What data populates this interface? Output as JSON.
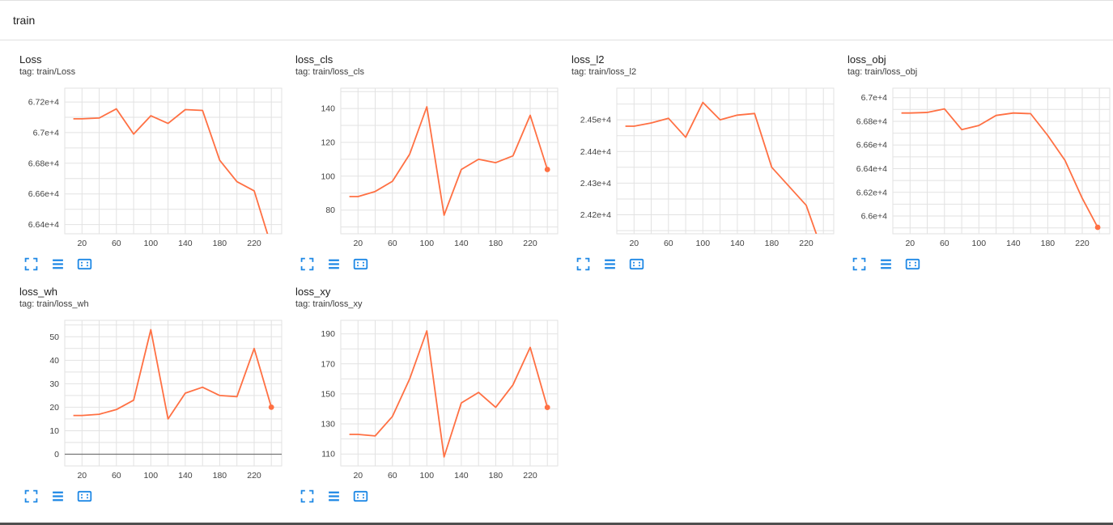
{
  "header": {
    "title": "train"
  },
  "colors": {
    "line": "#ff7043",
    "grid": "#e2e2e2",
    "axis_text": "#424242",
    "icon": "#1e88e5",
    "zero_line": "#757575"
  },
  "chart_data": [
    {
      "type": "line",
      "title": "Loss",
      "tag": "tag: train/Loss",
      "x": [
        10,
        20,
        40,
        60,
        80,
        100,
        120,
        140,
        160,
        180,
        200,
        220,
        236
      ],
      "y": [
        67090,
        67090,
        67095,
        67155,
        66990,
        67110,
        67060,
        67150,
        67145,
        66820,
        66680,
        66620,
        66330
      ],
      "xlim": [
        0,
        252
      ],
      "ylim": [
        66340,
        67290
      ],
      "xticks": [
        20,
        60,
        100,
        140,
        180,
        220
      ],
      "x_grid_step": 20,
      "yticks": [
        {
          "v": 66400,
          "label": "6.64e+4"
        },
        {
          "v": 66600,
          "label": "6.66e+4"
        },
        {
          "v": 66800,
          "label": "6.68e+4"
        },
        {
          "v": 67000,
          "label": "6.7e+4"
        },
        {
          "v": 67200,
          "label": "6.72e+4"
        }
      ],
      "y_minor_step": 100,
      "end_marker": false,
      "zero_line": false
    },
    {
      "type": "line",
      "title": "loss_cls",
      "tag": "tag: train/loss_cls",
      "x": [
        10,
        20,
        40,
        60,
        80,
        100,
        120,
        140,
        160,
        180,
        200,
        220,
        240
      ],
      "y": [
        88,
        88,
        91,
        97,
        113,
        141,
        77,
        104,
        110,
        108,
        112,
        136,
        104
      ],
      "xlim": [
        0,
        252
      ],
      "ylim": [
        66,
        152
      ],
      "xticks": [
        20,
        60,
        100,
        140,
        180,
        220
      ],
      "x_grid_step": 20,
      "yticks": [
        {
          "v": 80,
          "label": "80"
        },
        {
          "v": 100,
          "label": "100"
        },
        {
          "v": 120,
          "label": "120"
        },
        {
          "v": 140,
          "label": "140"
        }
      ],
      "y_minor_step": 10,
      "end_marker": true,
      "zero_line": false
    },
    {
      "type": "line",
      "title": "loss_l2",
      "tag": "tag: train/loss_l2",
      "x": [
        10,
        20,
        40,
        60,
        80,
        100,
        120,
        140,
        160,
        180,
        200,
        220,
        233
      ],
      "y": [
        24480,
        24480,
        24490,
        24505,
        24445,
        24555,
        24500,
        24515,
        24520,
        24350,
        24290,
        24230,
        24130
      ],
      "xlim": [
        0,
        252
      ],
      "ylim": [
        24140,
        24600
      ],
      "xticks": [
        20,
        60,
        100,
        140,
        180,
        220
      ],
      "x_grid_step": 20,
      "yticks": [
        {
          "v": 24200,
          "label": "2.42e+4"
        },
        {
          "v": 24300,
          "label": "2.43e+4"
        },
        {
          "v": 24400,
          "label": "2.44e+4"
        },
        {
          "v": 24500,
          "label": "2.45e+4"
        }
      ],
      "y_minor_step": 50,
      "end_marker": false,
      "zero_line": false
    },
    {
      "type": "line",
      "title": "loss_obj",
      "tag": "tag: train/loss_obj",
      "x": [
        10,
        20,
        40,
        60,
        80,
        100,
        120,
        140,
        160,
        180,
        200,
        220,
        238
      ],
      "y": [
        66870,
        66870,
        66875,
        66905,
        66730,
        66765,
        66850,
        66870,
        66865,
        66680,
        66470,
        66150,
        65905
      ],
      "xlim": [
        0,
        252
      ],
      "ylim": [
        65850,
        67080
      ],
      "xticks": [
        20,
        60,
        100,
        140,
        180,
        220
      ],
      "x_grid_step": 20,
      "yticks": [
        {
          "v": 66000,
          "label": "6.6e+4"
        },
        {
          "v": 66200,
          "label": "6.62e+4"
        },
        {
          "v": 66400,
          "label": "6.64e+4"
        },
        {
          "v": 66600,
          "label": "6.66e+4"
        },
        {
          "v": 66800,
          "label": "6.68e+4"
        },
        {
          "v": 67000,
          "label": "6.7e+4"
        }
      ],
      "y_minor_step": 100,
      "end_marker": true,
      "zero_line": false
    },
    {
      "type": "line",
      "title": "loss_wh",
      "tag": "tag: train/loss_wh",
      "x": [
        10,
        20,
        40,
        60,
        80,
        100,
        120,
        140,
        160,
        180,
        200,
        220,
        240
      ],
      "y": [
        16.5,
        16.5,
        17,
        19,
        23,
        53,
        15,
        26,
        28.5,
        25,
        24.5,
        45,
        20
      ],
      "xlim": [
        0,
        252
      ],
      "ylim": [
        -5,
        57
      ],
      "xticks": [
        20,
        60,
        100,
        140,
        180,
        220
      ],
      "x_grid_step": 20,
      "yticks": [
        {
          "v": 0,
          "label": "0"
        },
        {
          "v": 10,
          "label": "10"
        },
        {
          "v": 20,
          "label": "20"
        },
        {
          "v": 30,
          "label": "30"
        },
        {
          "v": 40,
          "label": "40"
        },
        {
          "v": 50,
          "label": "50"
        }
      ],
      "y_minor_step": 5,
      "end_marker": true,
      "zero_line": true
    },
    {
      "type": "line",
      "title": "loss_xy",
      "tag": "tag: train/loss_xy",
      "x": [
        10,
        20,
        40,
        60,
        80,
        100,
        120,
        140,
        160,
        180,
        200,
        220,
        240
      ],
      "y": [
        123,
        123,
        122,
        135,
        160,
        192,
        108,
        144,
        151,
        141,
        156,
        181,
        141
      ],
      "xlim": [
        0,
        252
      ],
      "ylim": [
        102,
        199
      ],
      "xticks": [
        20,
        60,
        100,
        140,
        180,
        220
      ],
      "x_grid_step": 20,
      "yticks": [
        {
          "v": 110,
          "label": "110"
        },
        {
          "v": 130,
          "label": "130"
        },
        {
          "v": 150,
          "label": "150"
        },
        {
          "v": 170,
          "label": "170"
        },
        {
          "v": 190,
          "label": "190"
        }
      ],
      "y_minor_step": 10,
      "end_marker": true,
      "zero_line": false
    }
  ]
}
